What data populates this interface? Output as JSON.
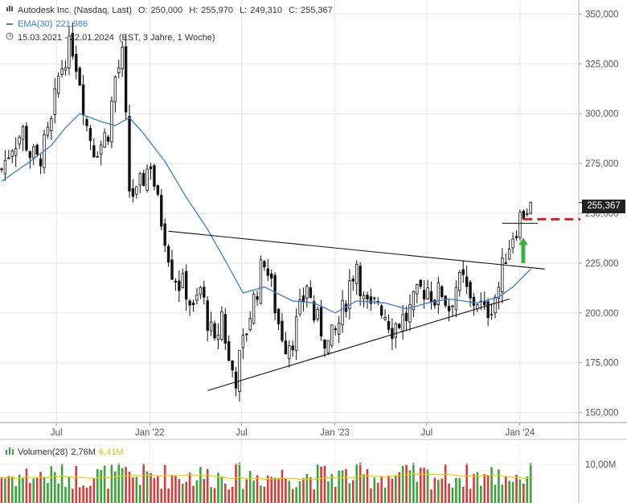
{
  "header": {
    "title": "Autodesk Inc. (Nasdaq, Last)",
    "open_label": "O:",
    "open": "250,000",
    "high_label": "H:",
    "high": "255,970",
    "low_label": "L:",
    "low": "249,310",
    "close_label": "C:",
    "close": "255,367",
    "ema_label": "EMA(30)",
    "ema_value": "221,986",
    "range": "15.03.2021 - 22.01.2024",
    "range_note": "(EST, 3 Jahre, 1 Woche)"
  },
  "volume": {
    "label": "Volumen(28)",
    "value": "2,76M",
    "avg": "6,41M"
  },
  "last_price_tag": "255,367",
  "colors": {
    "up": "#3aa33a",
    "down": "#d93a3a",
    "ema": "#3b7dd8",
    "resistance": "#e02020",
    "arrow": "#3cb043",
    "avg": "#e8d000"
  },
  "icons": {
    "chart_type": "candlestick-icon",
    "range": "clock-icon"
  },
  "chart_data": {
    "type": "candlestick",
    "title": "Autodesk Inc. (Nasdaq, Last)",
    "xlabel": "",
    "ylabel": "",
    "x_range": [
      "2021-03-15",
      "2024-01-22"
    ],
    "x_ticks": [
      {
        "label": "Jul",
        "date": "2021-07-01"
      },
      {
        "label": "Jan '22",
        "date": "2022-01-01"
      },
      {
        "label": "Jul",
        "date": "2022-07-01"
      },
      {
        "label": "Jan '23",
        "date": "2023-01-01"
      },
      {
        "label": "Jul",
        "date": "2023-07-01"
      },
      {
        "label": "Jan '24",
        "date": "2024-01-01"
      }
    ],
    "y_ticks": [
      150000,
      175000,
      200000,
      225000,
      250000,
      275000,
      300000,
      325000,
      350000
    ],
    "y_tick_labels": [
      "150,000",
      "175,000",
      "200,000",
      "225,000",
      "250,000",
      "275,000",
      "300,000",
      "325,000",
      "350,000"
    ],
    "ylim": [
      145000,
      355000
    ],
    "grid": true,
    "close_path": [
      [
        "2021-03-15",
        272
      ],
      [
        "2021-04-05",
        285
      ],
      [
        "2021-04-26",
        291
      ],
      [
        "2021-05-10",
        280
      ],
      [
        "2021-05-24",
        276
      ],
      [
        "2021-06-07",
        283
      ],
      [
        "2021-06-21",
        294
      ],
      [
        "2021-07-05",
        318
      ],
      [
        "2021-07-19",
        330
      ],
      [
        "2021-08-02",
        334
      ],
      [
        "2021-08-16",
        318
      ],
      [
        "2021-08-30",
        294
      ],
      [
        "2021-09-13",
        283
      ],
      [
        "2021-09-27",
        285
      ],
      [
        "2021-10-11",
        292
      ],
      [
        "2021-10-25",
        318
      ],
      [
        "2021-11-08",
        328
      ],
      [
        "2021-11-22",
        262
      ],
      [
        "2021-12-06",
        258
      ],
      [
        "2021-12-20",
        268
      ],
      [
        "2022-01-03",
        276
      ],
      [
        "2022-01-17",
        254
      ],
      [
        "2022-01-31",
        240
      ],
      [
        "2022-02-14",
        222
      ],
      [
        "2022-02-28",
        215
      ],
      [
        "2022-03-14",
        212
      ],
      [
        "2022-03-28",
        200
      ],
      [
        "2022-04-11",
        212
      ],
      [
        "2022-04-25",
        197
      ],
      [
        "2022-05-09",
        182
      ],
      [
        "2022-05-23",
        200
      ],
      [
        "2022-06-06",
        175
      ],
      [
        "2022-06-20",
        168
      ],
      [
        "2022-07-04",
        184
      ],
      [
        "2022-07-18",
        200
      ],
      [
        "2022-08-01",
        213
      ],
      [
        "2022-08-15",
        228
      ],
      [
        "2022-08-29",
        212
      ],
      [
        "2022-09-12",
        195
      ],
      [
        "2022-09-26",
        185
      ],
      [
        "2022-10-10",
        188
      ],
      [
        "2022-10-24",
        200
      ],
      [
        "2022-11-07",
        215
      ],
      [
        "2022-11-21",
        198
      ],
      [
        "2022-12-05",
        192
      ],
      [
        "2022-12-19",
        184
      ],
      [
        "2023-01-02",
        190
      ],
      [
        "2023-01-16",
        200
      ],
      [
        "2023-01-30",
        215
      ],
      [
        "2023-02-13",
        226
      ],
      [
        "2023-02-27",
        205
      ],
      [
        "2023-03-13",
        200
      ],
      [
        "2023-03-27",
        207
      ],
      [
        "2023-04-10",
        200
      ],
      [
        "2023-04-24",
        193
      ],
      [
        "2023-05-08",
        196
      ],
      [
        "2023-05-22",
        198
      ],
      [
        "2023-06-05",
        204
      ],
      [
        "2023-06-19",
        211
      ],
      [
        "2023-07-03",
        213
      ],
      [
        "2023-07-17",
        208
      ],
      [
        "2023-07-31",
        211
      ],
      [
        "2023-08-14",
        203
      ],
      [
        "2023-08-28",
        214
      ],
      [
        "2023-09-11",
        215
      ],
      [
        "2023-09-25",
        205
      ],
      [
        "2023-10-09",
        207
      ],
      [
        "2023-10-23",
        199
      ],
      [
        "2023-11-06",
        205
      ],
      [
        "2023-11-20",
        213
      ],
      [
        "2023-12-04",
        230
      ],
      [
        "2023-12-18",
        240
      ],
      [
        "2024-01-01",
        248
      ],
      [
        "2024-01-15",
        253
      ],
      [
        "2024-01-22",
        255.367
      ]
    ],
    "close_path_unit": "thousand",
    "ema30": [
      [
        "2021-03-15",
        266
      ],
      [
        "2021-05-10",
        276
      ],
      [
        "2021-06-21",
        284
      ],
      [
        "2021-07-19",
        293
      ],
      [
        "2021-08-16",
        300
      ],
      [
        "2021-09-27",
        296
      ],
      [
        "2021-10-25",
        294
      ],
      [
        "2021-11-22",
        298
      ],
      [
        "2021-12-20",
        290
      ],
      [
        "2022-01-31",
        276
      ],
      [
        "2022-03-14",
        258
      ],
      [
        "2022-04-25",
        242
      ],
      [
        "2022-06-06",
        223
      ],
      [
        "2022-07-04",
        210
      ],
      [
        "2022-08-15",
        213
      ],
      [
        "2022-10-10",
        206
      ],
      [
        "2022-11-21",
        205
      ],
      [
        "2023-01-02",
        200
      ],
      [
        "2023-02-13",
        206
      ],
      [
        "2023-04-10",
        205
      ],
      [
        "2023-05-22",
        202
      ],
      [
        "2023-07-03",
        205
      ],
      [
        "2023-08-14",
        207
      ],
      [
        "2023-10-09",
        205
      ],
      [
        "2023-11-20",
        208
      ],
      [
        "2023-12-18",
        213
      ],
      [
        "2024-01-22",
        221.986
      ]
    ],
    "trendlines": [
      {
        "name": "upper",
        "from": [
          "2022-02-07",
          241000
        ],
        "to": [
          "2024-02-19",
          222000
        ]
      },
      {
        "name": "lower",
        "from": [
          "2022-04-25",
          161000
        ],
        "to": [
          "2023-12-11",
          207000
        ]
      },
      {
        "name": "resistance",
        "from": [
          "2024-01-08",
          247000
        ],
        "to": [
          "2024-04-29",
          247000
        ],
        "style": "dashed"
      }
    ],
    "volume_axis": {
      "tick": 10000000,
      "tick_label": "10,00M",
      "ylim": [
        0,
        16000000
      ]
    }
  }
}
